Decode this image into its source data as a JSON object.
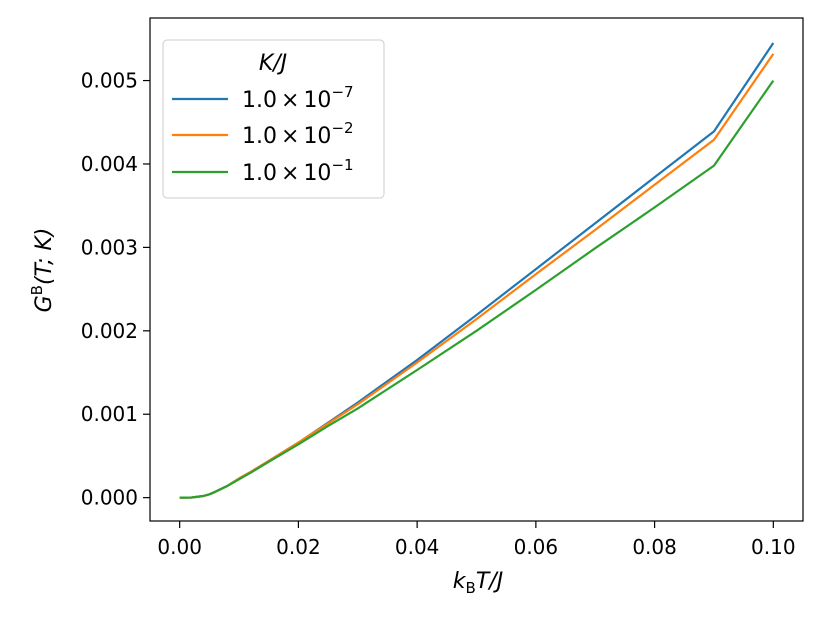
{
  "chart_data": {
    "type": "line",
    "xlabel": {
      "main": "k",
      "sub": "B",
      "tail": "T/J"
    },
    "ylabel": {
      "main": "G",
      "sup": "B",
      "tail": "(T; K)"
    },
    "xlim": [
      -0.005,
      0.105
    ],
    "ylim": [
      -0.00028,
      0.00575
    ],
    "xticks": [
      0.0,
      0.02,
      0.04,
      0.06,
      0.08,
      0.1
    ],
    "xtick_labels": [
      "0.00",
      "0.02",
      "0.04",
      "0.06",
      "0.08",
      "0.10"
    ],
    "yticks": [
      0.0,
      0.001,
      0.002,
      0.003,
      0.004,
      0.005
    ],
    "ytick_labels": [
      "0.000",
      "0.001",
      "0.002",
      "0.003",
      "0.004",
      "0.005"
    ],
    "grid": false,
    "legend": {
      "placement": "upper-left",
      "title": "K/J",
      "entries": [
        {
          "mantissa": "1.0",
          "times": "×",
          "base": "10",
          "exp": "−7"
        },
        {
          "mantissa": "1.0",
          "times": "×",
          "base": "10",
          "exp": "−2"
        },
        {
          "mantissa": "1.0",
          "times": "×",
          "base": "10",
          "exp": "−1"
        }
      ]
    },
    "x": [
      0.0,
      0.002,
      0.004,
      0.005,
      0.006,
      0.008,
      0.01,
      0.012,
      0.015,
      0.02,
      0.025,
      0.03,
      0.04,
      0.05,
      0.06,
      0.07,
      0.08,
      0.09,
      0.1
    ],
    "series": [
      {
        "color": "#1f77b4",
        "values": [
          0.0,
          2e-06,
          2e-05,
          4e-05,
          7e-05,
          0.00014,
          0.00023,
          0.00031,
          0.00044,
          0.00066,
          0.0009,
          0.00114,
          0.00165,
          0.00219,
          0.00274,
          0.00329,
          0.00384,
          0.00439,
          0.00545
        ]
      },
      {
        "color": "#ff7f0e",
        "values": [
          0.0,
          2e-06,
          2e-05,
          4e-05,
          7e-05,
          0.00014,
          0.00023,
          0.00031,
          0.00044,
          0.00066,
          0.00089,
          0.00112,
          0.00162,
          0.00214,
          0.00268,
          0.00321,
          0.00375,
          0.00429,
          0.00532
        ]
      },
      {
        "color": "#2ca02c",
        "values": [
          0.0,
          2e-06,
          2e-05,
          4e-05,
          7e-05,
          0.00014,
          0.00022,
          0.0003,
          0.00043,
          0.00064,
          0.00086,
          0.00107,
          0.00153,
          0.002,
          0.00249,
          0.00299,
          0.00348,
          0.00398,
          0.005
        ]
      }
    ]
  }
}
